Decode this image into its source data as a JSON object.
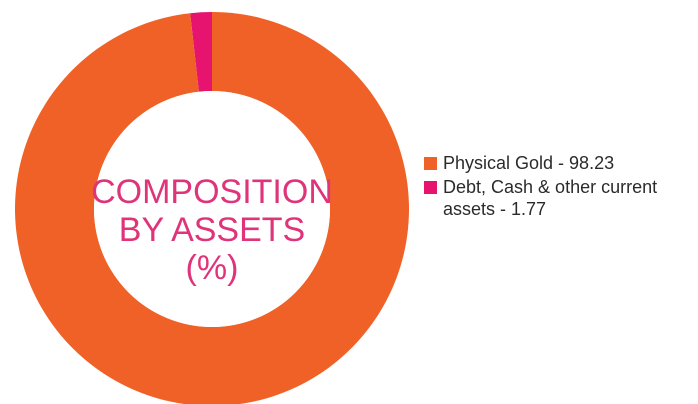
{
  "chart_data": {
    "type": "pie",
    "center_title": [
      "COMPOSITION",
      "BY ASSETS",
      "(%)"
    ],
    "categories": [
      "Physical Gold",
      "Debt, Cash & other current assets"
    ],
    "values": [
      98.23,
      1.77
    ],
    "legend_labels": [
      "Physical Gold - 98.23",
      "Debt, Cash & other current assets - 1.77"
    ],
    "colors": [
      "#f06127",
      "#e6146f"
    ],
    "legend_position": "right"
  }
}
